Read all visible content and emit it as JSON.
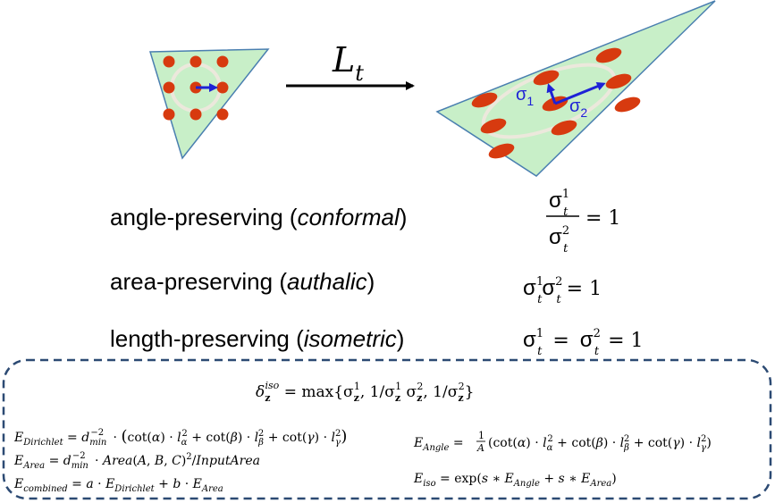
{
  "diagram": {
    "colors": {
      "triangle_fill": "#c8efc8",
      "triangle_stroke": "#4a7fb0",
      "dot_fill": "#d73a0f",
      "arrow_blue": "#1e22d6",
      "ring": "#ece8dc",
      "box_stroke": "#2c4a73",
      "text": "#000000"
    },
    "map_label": "L",
    "map_subscript": "t",
    "sigma": "σ",
    "sigma1_sub": "1",
    "sigma2_sub": "2",
    "properties": [
      {
        "name": "angle-preserving",
        "qualifier": "conformal"
      },
      {
        "name": "area-preserving",
        "qualifier": "authalic"
      },
      {
        "name": "length-preserving",
        "qualifier": "isometric"
      }
    ],
    "equation_sup1": "1",
    "equation_sup2": "2",
    "equation_sub": "t",
    "equation_rhs": "= 1",
    "equation_mid_eq": "=",
    "formulas": {
      "delta_iso": "δ_z^iso = max{σ_z^1, 1/σ_z^1 σ_z^2, 1/σ_z^2}",
      "e_dirichlet": "E_Dirichlet = d_min^−2 · (cot(α) · l_α^2 + cot(β) · l_β^2 + cot(γ) · l_γ^2)",
      "e_area": "E_Area = d_min^−2 · Area(A, B, C)^2/InputArea",
      "e_combined": "E_combined = a · E_Dirichlet + b · E_Area",
      "e_angle": "E_Angle = 1/A (cot(α) · l_α^2 + cot(β) · l_β^2 + cot(γ) · l_γ^2)",
      "e_iso": "E_iso = exp(s ∗ E_Angle + s ∗ E_Area)"
    }
  }
}
